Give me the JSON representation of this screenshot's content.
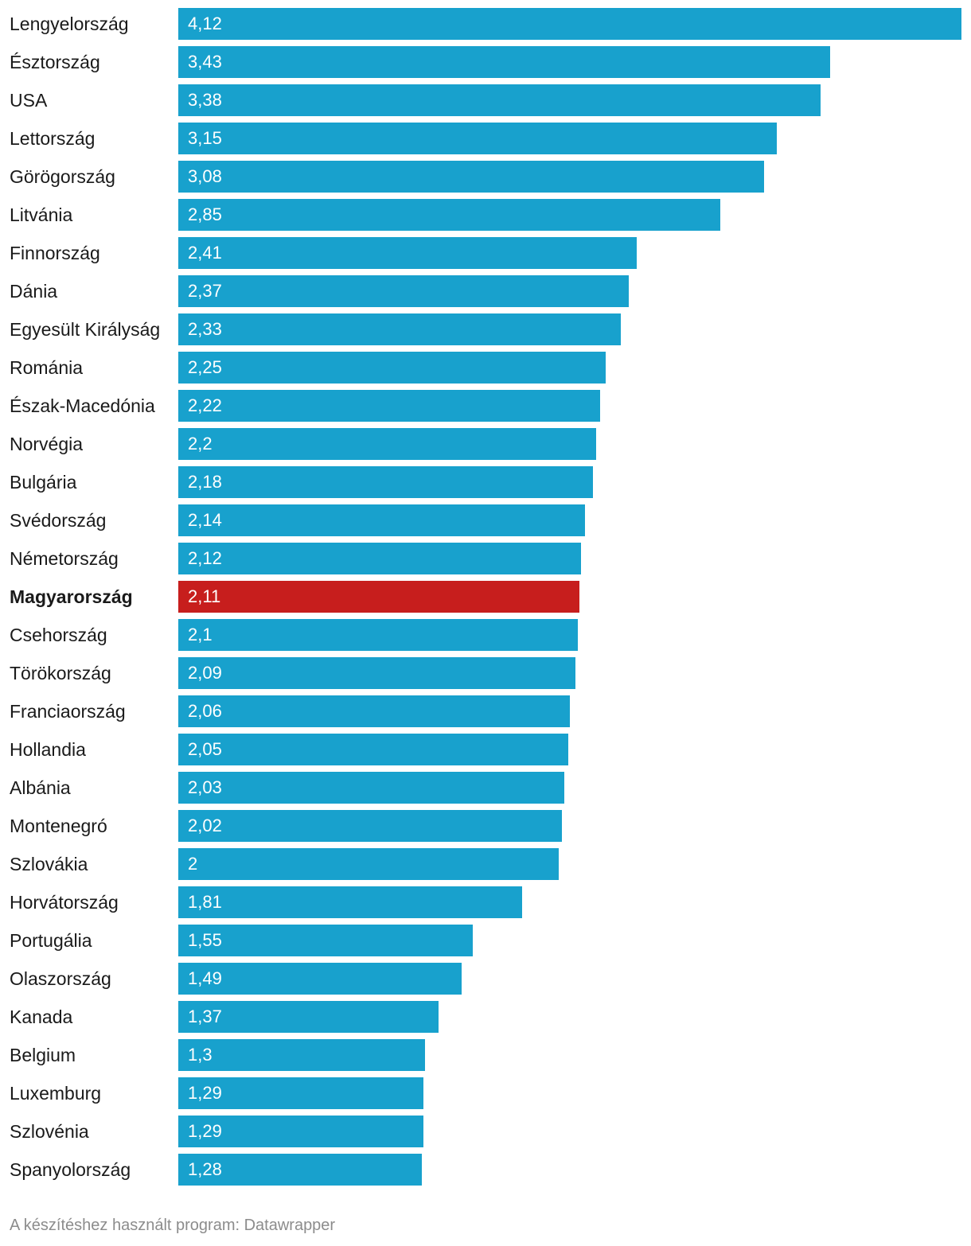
{
  "chart_data": {
    "type": "bar",
    "orientation": "horizontal",
    "categories": [
      "Lengyelország",
      "Észtország",
      "USA",
      "Lettország",
      "Görögország",
      "Litvánia",
      "Finnország",
      "Dánia",
      "Egyesült Királyság",
      "Románia",
      "Észak-Macedónia",
      "Norvégia",
      "Bulgária",
      "Svédország",
      "Németország",
      "Magyarország",
      "Csehország",
      "Törökország",
      "Franciaország",
      "Hollandia",
      "Albánia",
      "Montenegró",
      "Szlovákia",
      "Horvátország",
      "Portugália",
      "Olaszország",
      "Kanada",
      "Belgium",
      "Luxemburg",
      "Szlovénia",
      "Spanyolország"
    ],
    "values": [
      4.12,
      3.43,
      3.38,
      3.15,
      3.08,
      2.85,
      2.41,
      2.37,
      2.33,
      2.25,
      2.22,
      2.2,
      2.18,
      2.14,
      2.12,
      2.11,
      2.1,
      2.09,
      2.06,
      2.05,
      2.03,
      2.02,
      2,
      1.81,
      1.55,
      1.49,
      1.37,
      1.3,
      1.29,
      1.29,
      1.28
    ],
    "value_labels": [
      "4,12",
      "3,43",
      "3,38",
      "3,15",
      "3,08",
      "2,85",
      "2,41",
      "2,37",
      "2,33",
      "2,25",
      "2,22",
      "2,2",
      "2,18",
      "2,14",
      "2,12",
      "2,11",
      "2,1",
      "2,09",
      "2,06",
      "2,05",
      "2,03",
      "2,02",
      "2",
      "1,81",
      "1,55",
      "1,49",
      "1,37",
      "1,3",
      "1,29",
      "1,29",
      "1,28"
    ],
    "highlight": "Magyarország",
    "xlim": [
      0,
      4.12
    ],
    "grid": false,
    "colors": {
      "bar": "#18a1cd",
      "highlight": "#c71e1d"
    }
  },
  "footer": {
    "credit": "A készítéshez használt program: Datawrapper"
  }
}
